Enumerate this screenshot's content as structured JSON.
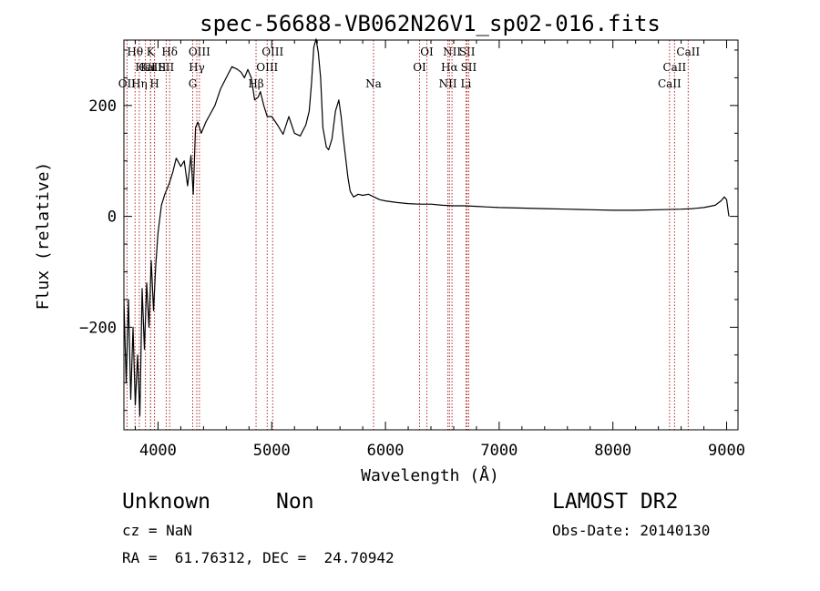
{
  "chart_data": {
    "type": "line",
    "title": "spec-56688-VB062N26V1_sp02-016.fits",
    "xlabel": "Wavelength (Å)",
    "ylabel": "Flux (relative)",
    "xlim": [
      3700,
      9100
    ],
    "ylim": [
      -385,
      318
    ],
    "x_ticks": [
      4000,
      5000,
      6000,
      7000,
      8000,
      9000
    ],
    "x_tick_labels": [
      "4000",
      "5000",
      "6000",
      "7000",
      "8000",
      "9000"
    ],
    "y_ticks": [
      -200,
      0,
      200
    ],
    "y_tick_labels": [
      "−200",
      "0",
      "200"
    ],
    "grid": false,
    "series": [
      {
        "color": "#000000",
        "x": [
          3700,
          3720,
          3740,
          3760,
          3780,
          3800,
          3820,
          3840,
          3860,
          3880,
          3900,
          3920,
          3940,
          3960,
          3980,
          4000,
          4030,
          4060,
          4100,
          4130,
          4160,
          4200,
          4230,
          4260,
          4290,
          4310,
          4330,
          4350,
          4380,
          4420,
          4460,
          4500,
          4550,
          4600,
          4650,
          4700,
          4730,
          4760,
          4790,
          4820,
          4850,
          4880,
          4900,
          4930,
          4960,
          5000,
          5050,
          5100,
          5150,
          5200,
          5250,
          5300,
          5330,
          5350,
          5370,
          5390,
          5410,
          5430,
          5450,
          5480,
          5500,
          5530,
          5560,
          5590,
          5610,
          5630,
          5650,
          5670,
          5690,
          5720,
          5760,
          5800,
          5850,
          5900,
          5950,
          6000,
          6100,
          6200,
          6300,
          6400,
          6500,
          6600,
          6700,
          6800,
          6900,
          7000,
          7200,
          7400,
          7600,
          7800,
          8000,
          8200,
          8400,
          8600,
          8700,
          8800,
          8900,
          8950,
          8980,
          9000,
          9020
        ],
        "y": [
          -150,
          -300,
          -150,
          -330,
          -200,
          -340,
          -250,
          -360,
          -130,
          -240,
          -120,
          -200,
          -80,
          -170,
          -90,
          -30,
          20,
          40,
          60,
          80,
          105,
          90,
          100,
          55,
          110,
          40,
          160,
          170,
          150,
          170,
          185,
          200,
          230,
          250,
          270,
          265,
          260,
          250,
          265,
          250,
          210,
          215,
          225,
          200,
          180,
          180,
          165,
          148,
          180,
          150,
          145,
          165,
          190,
          240,
          305,
          320,
          295,
          250,
          160,
          125,
          120,
          140,
          190,
          210,
          180,
          140,
          105,
          70,
          45,
          35,
          40,
          38,
          40,
          35,
          30,
          28,
          25,
          23,
          22,
          22,
          20,
          19,
          19,
          18,
          17,
          16,
          15,
          14,
          13,
          12,
          11,
          11,
          12,
          13,
          14,
          16,
          20,
          28,
          35,
          30,
          0
        ]
      }
    ],
    "emission_lines": [
      {
        "label": "CaII",
        "wavelength": 3934,
        "row": 1
      },
      {
        "label": "CaII",
        "wavelength": 3969,
        "row": 1
      },
      {
        "label": "OII",
        "wavelength": 3727,
        "row": 2
      },
      {
        "label": "Hθ",
        "wavelength": 3798,
        "row": 0
      },
      {
        "label": "Hη",
        "wavelength": 3835,
        "row": 2
      },
      {
        "label": "HeI",
        "wavelength": 3889,
        "row": 1
      },
      {
        "label": "K",
        "wavelength": 3934,
        "row": 0
      },
      {
        "label": "SII",
        "wavelength": 4072,
        "row": 1
      },
      {
        "label": "H",
        "wavelength": 3969,
        "row": 2
      },
      {
        "label": "Hδ",
        "wavelength": 4102,
        "row": 0
      },
      {
        "label": "OIII",
        "wavelength": 4364,
        "row": 0
      },
      {
        "label": "Hγ",
        "wavelength": 4341,
        "row": 1
      },
      {
        "label": "G",
        "wavelength": 4305,
        "row": 2
      },
      {
        "label": "OIII",
        "wavelength": 5008,
        "row": 0
      },
      {
        "label": "OIII",
        "wavelength": 4960,
        "row": 1
      },
      {
        "label": "Hβ",
        "wavelength": 4862,
        "row": 2
      },
      {
        "label": "Na",
        "wavelength": 5895,
        "row": 2
      },
      {
        "label": "OI",
        "wavelength": 6364,
        "row": 0
      },
      {
        "label": "OI",
        "wavelength": 6300,
        "row": 1
      },
      {
        "label": "NII",
        "wavelength": 6585,
        "row": 0
      },
      {
        "label": "SII",
        "wavelength": 6718,
        "row": 0
      },
      {
        "label": "Hα",
        "wavelength": 6563,
        "row": 1
      },
      {
        "label": "SII",
        "wavelength": 6732,
        "row": 1
      },
      {
        "label": "NII",
        "wavelength": 6549,
        "row": 2
      },
      {
        "label": "Li",
        "wavelength": 6708,
        "row": 2
      },
      {
        "label": "CaII",
        "wavelength": 8662,
        "row": 0
      },
      {
        "label": "CaII",
        "wavelength": 8542,
        "row": 1
      },
      {
        "label": "CaII",
        "wavelength": 8498,
        "row": 2
      }
    ]
  },
  "info": {
    "class_label": "Unknown",
    "subclass_label": "Non",
    "survey": "LAMOST DR2",
    "cz_text": "cz = NaN",
    "obs_date_text": "Obs-Date: 20140130",
    "coords_text": "RA =  61.76312, DEC =  24.70942"
  }
}
